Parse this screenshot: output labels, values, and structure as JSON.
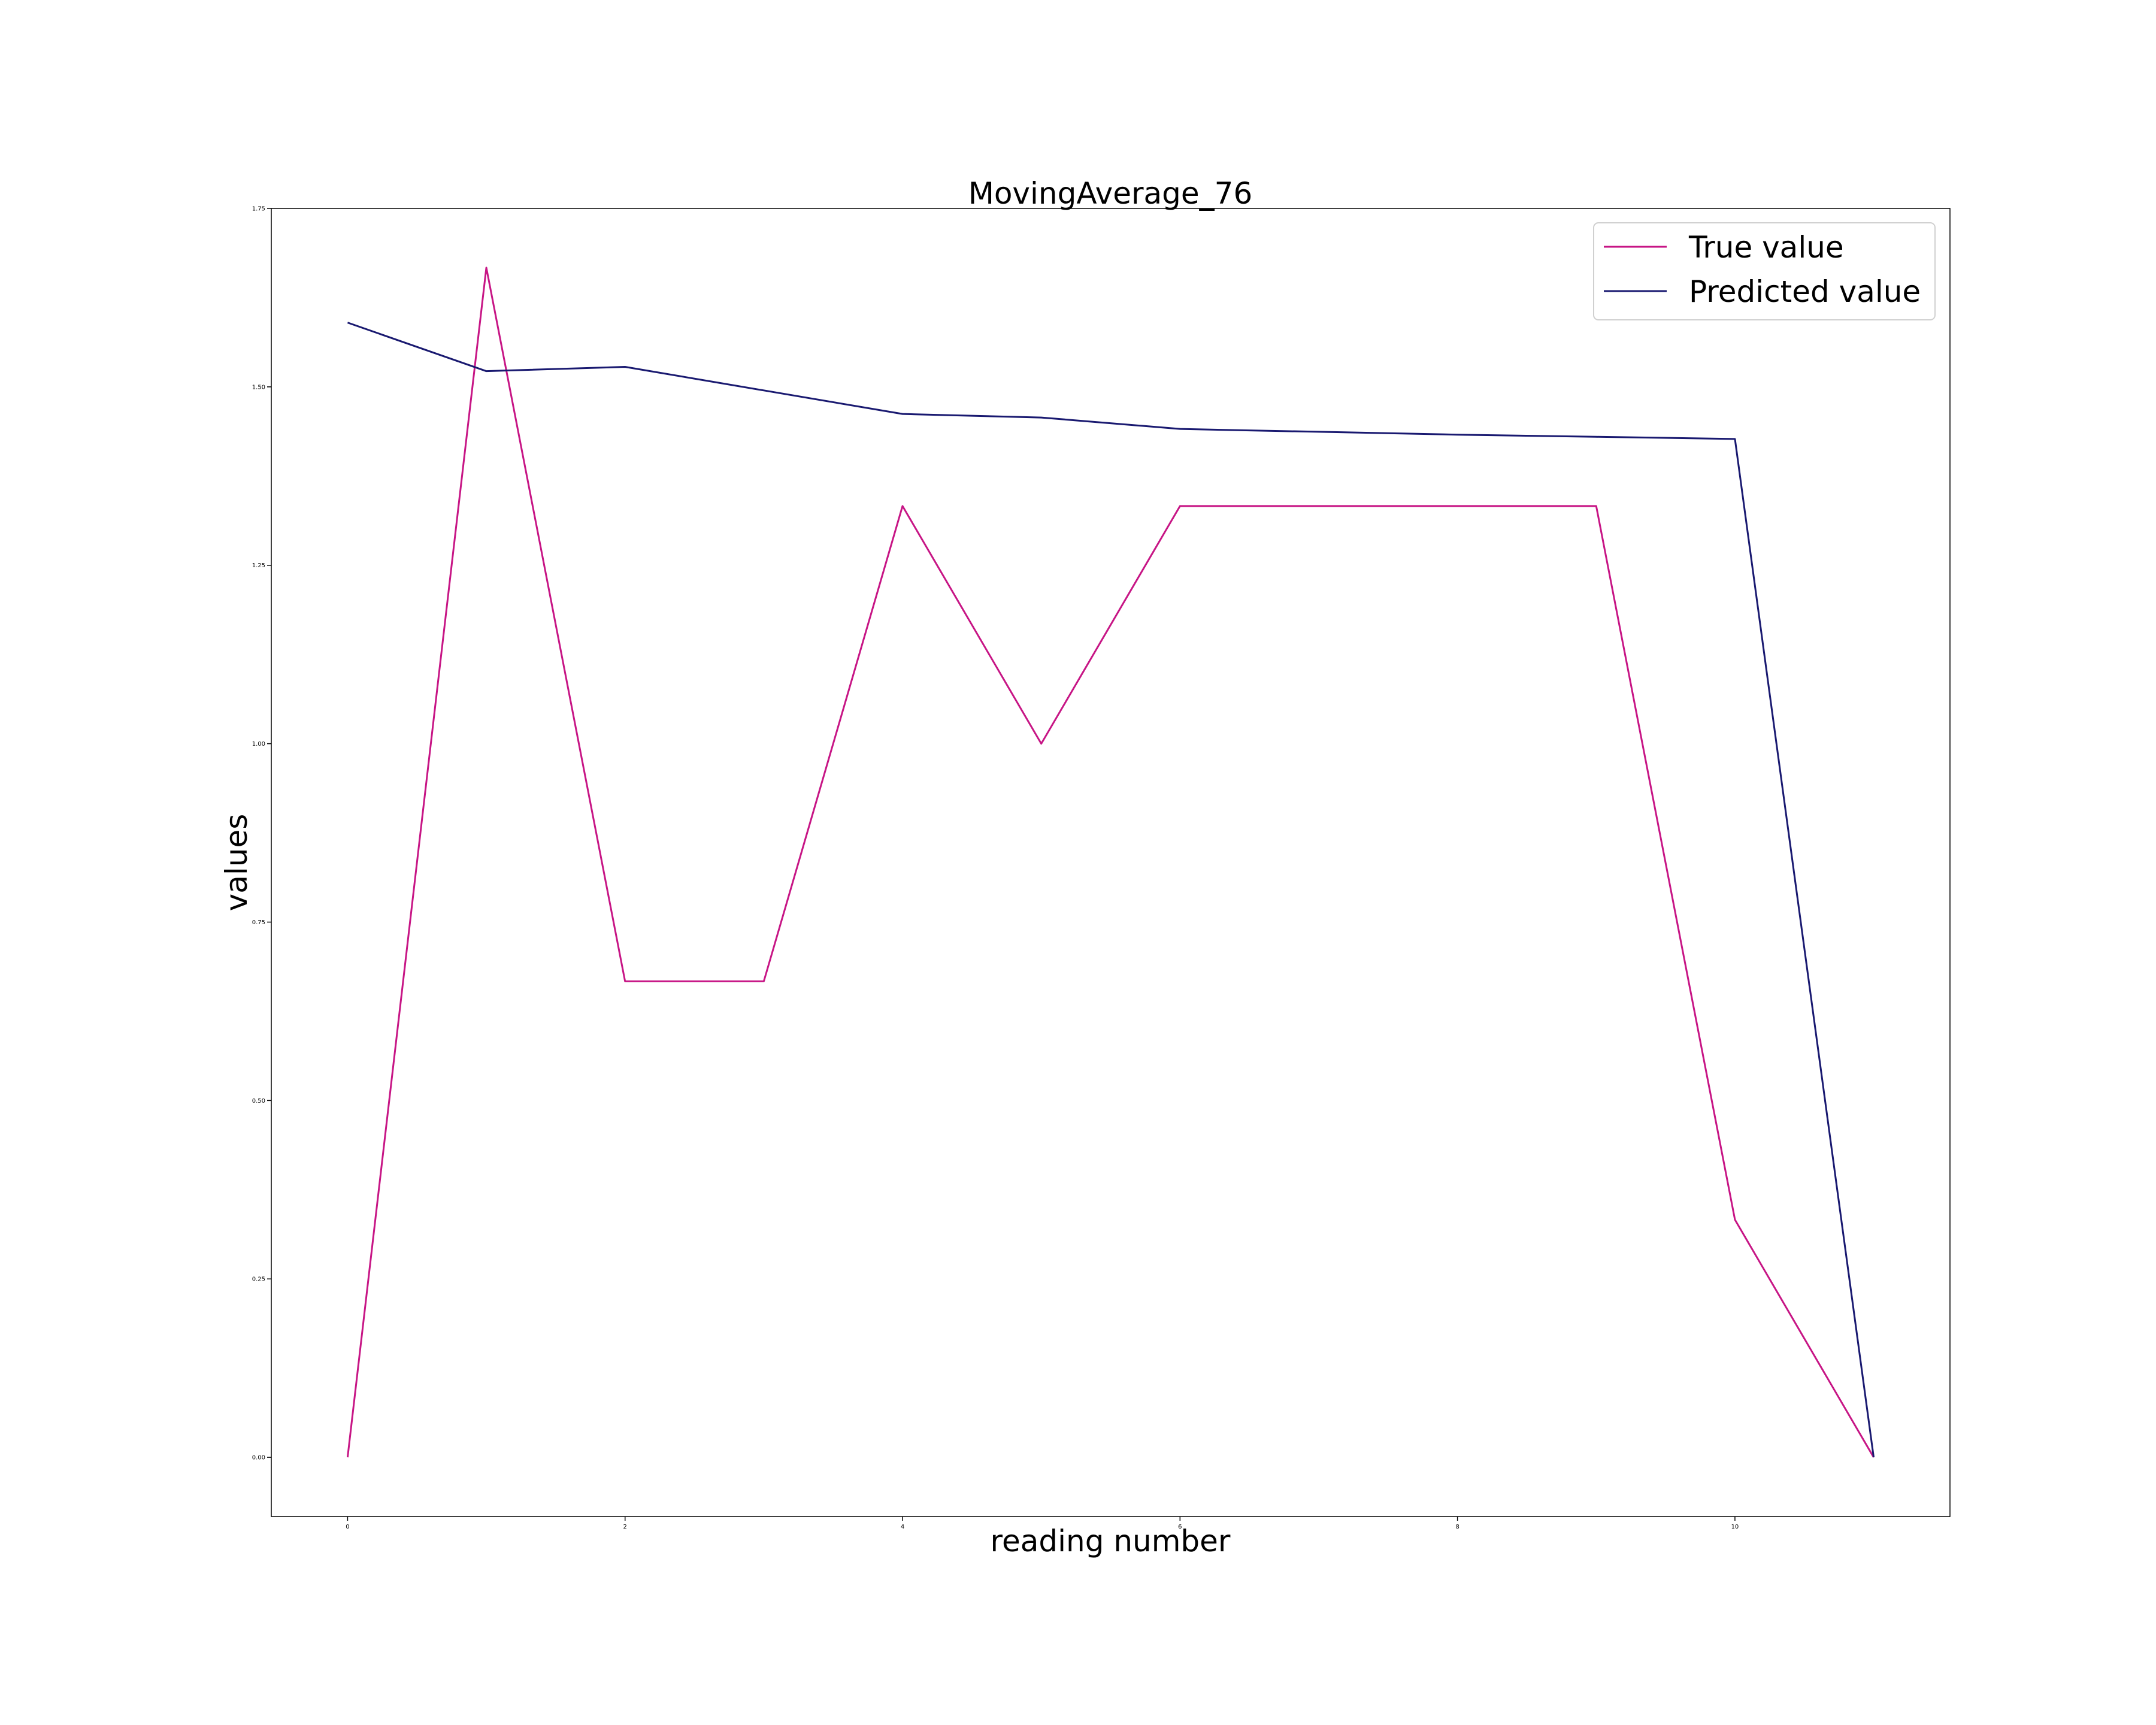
{
  "chart_data": {
    "type": "line",
    "title": "MovingAverage_76",
    "xlabel": "reading number",
    "ylabel": "values",
    "x": [
      0,
      1,
      2,
      3,
      4,
      5,
      6,
      7,
      8,
      9,
      10,
      11
    ],
    "series": [
      {
        "name": "True value",
        "color": "#c71585",
        "values": [
          0.0,
          1.667,
          0.667,
          0.667,
          1.333,
          1.0,
          1.333,
          1.333,
          1.333,
          1.333,
          0.333,
          0.0
        ]
      },
      {
        "name": "Predicted value",
        "color": "#191970",
        "values": [
          1.59,
          1.522,
          1.528,
          1.495,
          1.462,
          1.457,
          1.441,
          1.437,
          1.433,
          1.43,
          1.427,
          0.0
        ]
      }
    ],
    "xticks": [
      0,
      2,
      4,
      6,
      8,
      10
    ],
    "xtick_labels": [
      "0",
      "2",
      "4",
      "6",
      "8",
      "10"
    ],
    "yticks": [
      0.0,
      0.25,
      0.5,
      0.75,
      1.0,
      1.25,
      1.5,
      1.75
    ],
    "ytick_labels": [
      "0.00",
      "0.25",
      "0.50",
      "0.75",
      "1.00",
      "1.25",
      "1.50",
      "1.75"
    ],
    "xlim": [
      -0.55,
      11.55
    ],
    "ylim": [
      -0.083,
      1.75
    ],
    "grid": false,
    "legend_position": "top-right"
  }
}
